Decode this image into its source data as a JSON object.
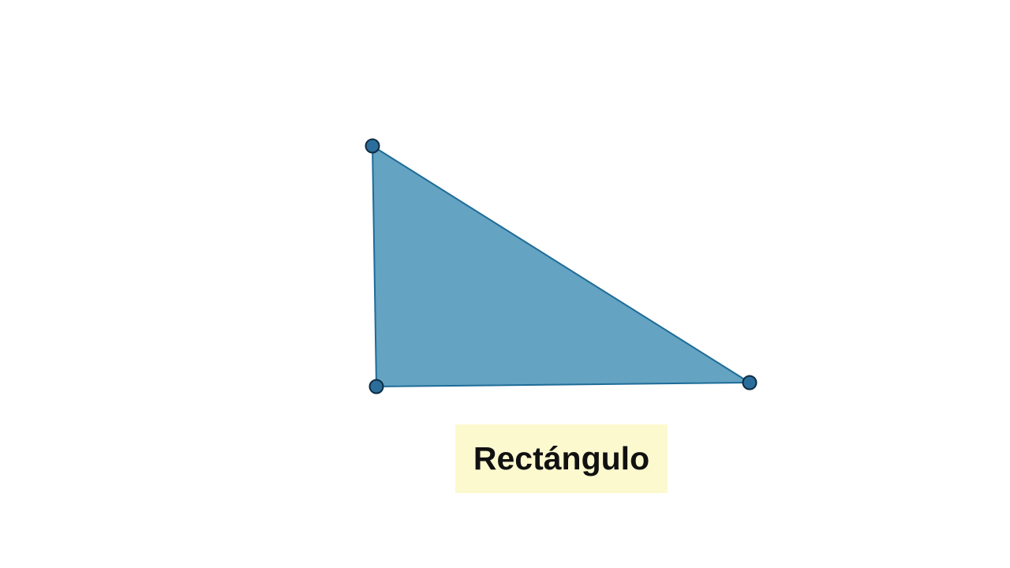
{
  "label": {
    "text": "Rectángulo"
  },
  "colors": {
    "background": "#ffffff",
    "triangle_fill": "#64a3c2",
    "triangle_stroke": "#1f6c98",
    "vertex_fill": "#2b6e9c",
    "vertex_stroke": "#0f2c42",
    "label_background": "#fdf9cf",
    "label_text": "#111111"
  }
}
